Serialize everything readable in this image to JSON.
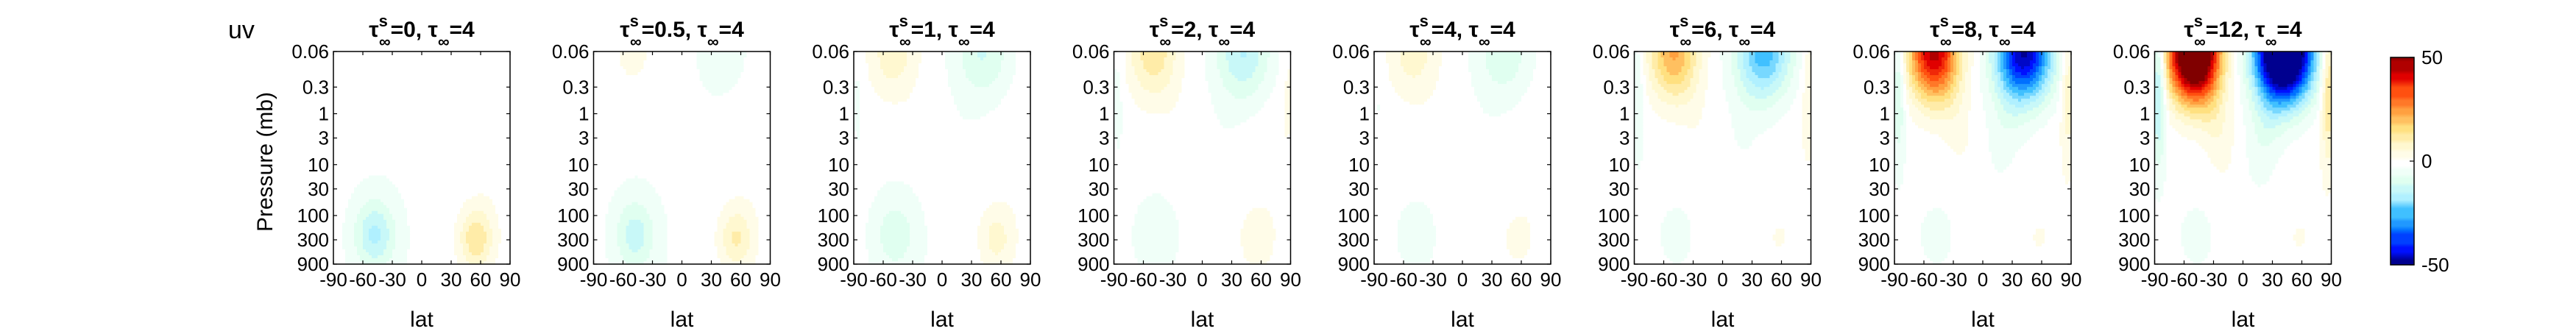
{
  "figure": {
    "label": "uv",
    "ylabel": "Pressure (mb)",
    "xlabel": "lat"
  },
  "colors": {
    "colormap": [
      "#00008f",
      "#0010ff",
      "#0070ff",
      "#40c0ff",
      "#b0f0ff",
      "#e0fff0",
      "#ffffff",
      "#fff8d0",
      "#ffe080",
      "#ffa040",
      "#ff5010",
      "#e00000",
      "#800000"
    ]
  },
  "chart_data": {
    "type": "heatmap",
    "subtype": "filled-contour",
    "panels": [
      {
        "ts_label": "0",
        "tinf_label": "4",
        "amp_upper": 0,
        "amp_lower": 14
      },
      {
        "ts_label": "0.5",
        "tinf_label": "4",
        "amp_upper": 4,
        "amp_lower": 11
      },
      {
        "ts_label": "1",
        "tinf_label": "4",
        "amp_upper": 10,
        "amp_lower": 8
      },
      {
        "ts_label": "2",
        "tinf_label": "4",
        "amp_upper": 14,
        "amp_lower": 5
      },
      {
        "ts_label": "4",
        "tinf_label": "4",
        "amp_upper": 9,
        "amp_lower": 3
      },
      {
        "ts_label": "6",
        "tinf_label": "4",
        "amp_upper": 24,
        "amp_lower": 2
      },
      {
        "ts_label": "8",
        "tinf_label": "4",
        "amp_upper": 46,
        "amp_lower": 2
      },
      {
        "ts_label": "12",
        "tinf_label": "4",
        "amp_upper": 75,
        "amp_lower": 2
      }
    ],
    "x_ticks": [
      -90,
      -60,
      -30,
      0,
      30,
      60,
      90
    ],
    "x_tick_labels": [
      "-90",
      "-60",
      "-30",
      "0",
      "30",
      "60",
      "90"
    ],
    "y_ticks": [
      0.06,
      0.3,
      1,
      3,
      10,
      30,
      100,
      300,
      900
    ],
    "y_tick_labels": [
      "0.06",
      "0.3",
      "1",
      "3",
      "10",
      "30",
      "100",
      "300",
      "900"
    ],
    "y_scale": "log",
    "y_reversed": true,
    "xlim": [
      -90,
      90
    ],
    "ylim": [
      900,
      0.06
    ],
    "colorbar": {
      "min": -50,
      "max": 50,
      "ticks": [
        50,
        0,
        -50
      ],
      "tick_labels": [
        "50",
        "0",
        "-50"
      ]
    }
  }
}
